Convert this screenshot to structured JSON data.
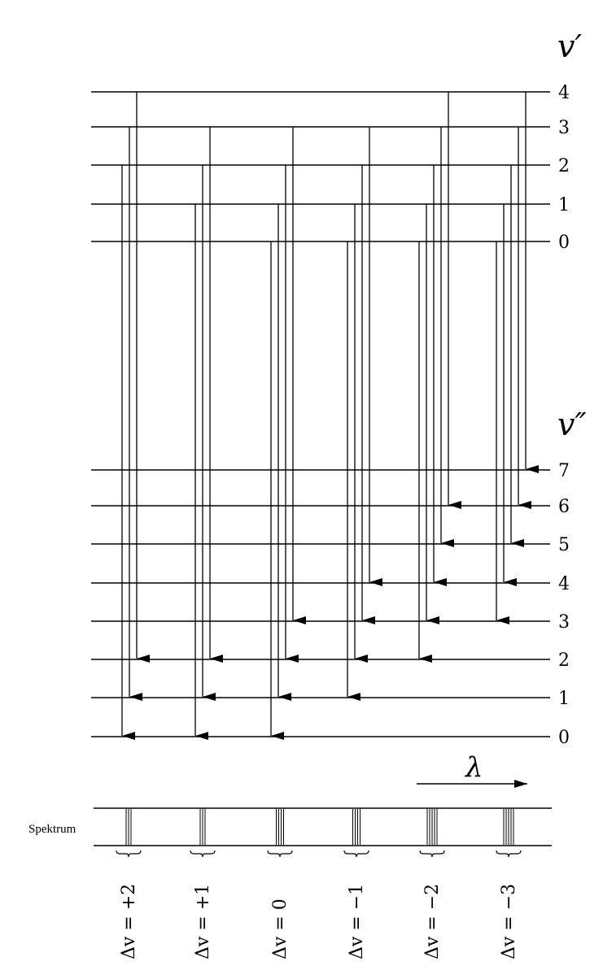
{
  "upper_label": "v′",
  "lower_label": "v″",
  "upper_levels": [
    "4",
    "3",
    "2",
    "1",
    "0"
  ],
  "lower_levels": [
    "7",
    "6",
    "5",
    "4",
    "3",
    "2",
    "1",
    "0"
  ],
  "lambda_label": "λ",
  "spectrum_label": "Spektrum",
  "delta_v_labels": [
    "Δv = +2",
    "Δv = +1",
    "Δv = 0",
    "Δv = −1",
    "Δv = −2",
    "Δv = −3"
  ],
  "transition_groups": [
    {
      "delta_v": 2,
      "transitions": [
        [
          2,
          0
        ],
        [
          3,
          1
        ],
        [
          4,
          2
        ]
      ]
    },
    {
      "delta_v": 1,
      "transitions": [
        [
          1,
          0
        ],
        [
          2,
          1
        ],
        [
          3,
          2
        ]
      ]
    },
    {
      "delta_v": 0,
      "transitions": [
        [
          0,
          0
        ],
        [
          1,
          1
        ],
        [
          2,
          2
        ],
        [
          3,
          3
        ]
      ]
    },
    {
      "delta_v": -1,
      "transitions": [
        [
          0,
          1
        ],
        [
          1,
          2
        ],
        [
          2,
          3
        ],
        [
          3,
          4
        ]
      ]
    },
    {
      "delta_v": -2,
      "transitions": [
        [
          0,
          2
        ],
        [
          1,
          3
        ],
        [
          2,
          4
        ],
        [
          3,
          5
        ],
        [
          4,
          6
        ]
      ]
    },
    {
      "delta_v": -3,
      "transitions": [
        [
          0,
          3
        ],
        [
          1,
          4
        ],
        [
          2,
          5
        ],
        [
          3,
          6
        ],
        [
          4,
          7
        ]
      ]
    }
  ]
}
